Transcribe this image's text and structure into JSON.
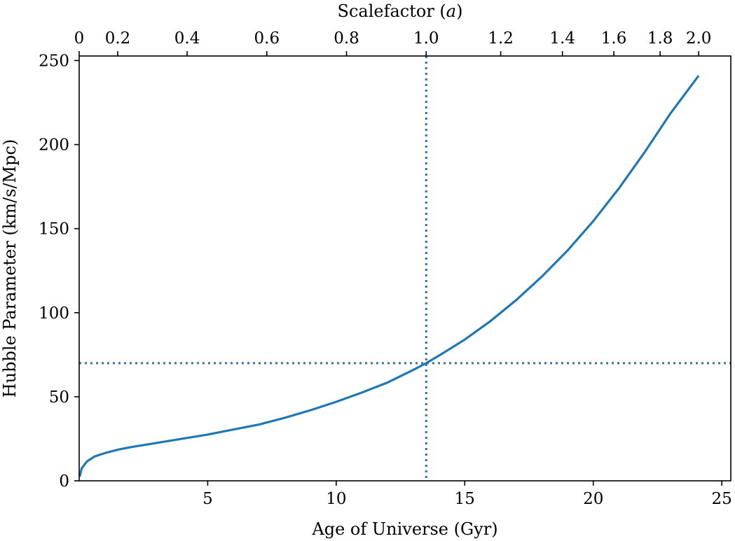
{
  "chart_data": {
    "type": "line",
    "xlabel": "Age of Universe (Gyr)",
    "ylabel": "Hubble Parameter (km/s/Mpc)",
    "top_xlabel_prefix": "Scalefactor (",
    "top_xlabel_var": "a",
    "top_xlabel_suffix": ")",
    "xlim": [
      0,
      25.35
    ],
    "ylim": [
      0,
      252.7
    ],
    "x_ticks": [
      "5",
      "10",
      "15",
      "20",
      "25"
    ],
    "x_tick_values": [
      5,
      10,
      15,
      20,
      25
    ],
    "y_ticks": [
      "0",
      "50",
      "100",
      "150",
      "200",
      "250"
    ],
    "y_tick_values": [
      0,
      50,
      100,
      150,
      200,
      250
    ],
    "top_ticks": [
      "0",
      "0.2",
      "0.4",
      "0.6",
      "0.8",
      "1.0",
      "1.2",
      "1.4",
      "1.6",
      "1.8",
      "2.0"
    ],
    "top_tick_ages_gyr": [
      0,
      1.5,
      4.2,
      7.3,
      10.4,
      13.5,
      16.4,
      18.8,
      20.8,
      22.6,
      24.1
    ],
    "grid": false,
    "series": [
      {
        "color": "#1f77b4",
        "style": "solid",
        "x": [
          0.02,
          0.1,
          0.3,
          0.6,
          1.0,
          1.5,
          2.0,
          3.0,
          4.0,
          5.0,
          6.0,
          7.0,
          8.0,
          9.0,
          10.0,
          11.0,
          12.0,
          13.0,
          13.5,
          14.0,
          15.0,
          16.0,
          17.0,
          18.0,
          19.0,
          20.0,
          21.0,
          22.0,
          23.0,
          24.1
        ],
        "y": [
          2.5,
          7.5,
          11.5,
          14.5,
          16.5,
          18.5,
          20.0,
          22.5,
          25.0,
          27.5,
          30.5,
          33.5,
          37.5,
          42.0,
          47.0,
          52.5,
          58.5,
          66.0,
          70.0,
          74.5,
          84.0,
          95.0,
          107.5,
          121.5,
          137.0,
          154.5,
          174.0,
          195.5,
          218.5,
          241.0
        ]
      }
    ],
    "reference_lines": [
      {
        "orientation": "vertical",
        "x": 13.5,
        "color": "#1f77b4",
        "style": "dotted"
      },
      {
        "orientation": "horizontal",
        "y": 70,
        "color": "#1f77b4",
        "style": "dotted"
      }
    ]
  }
}
